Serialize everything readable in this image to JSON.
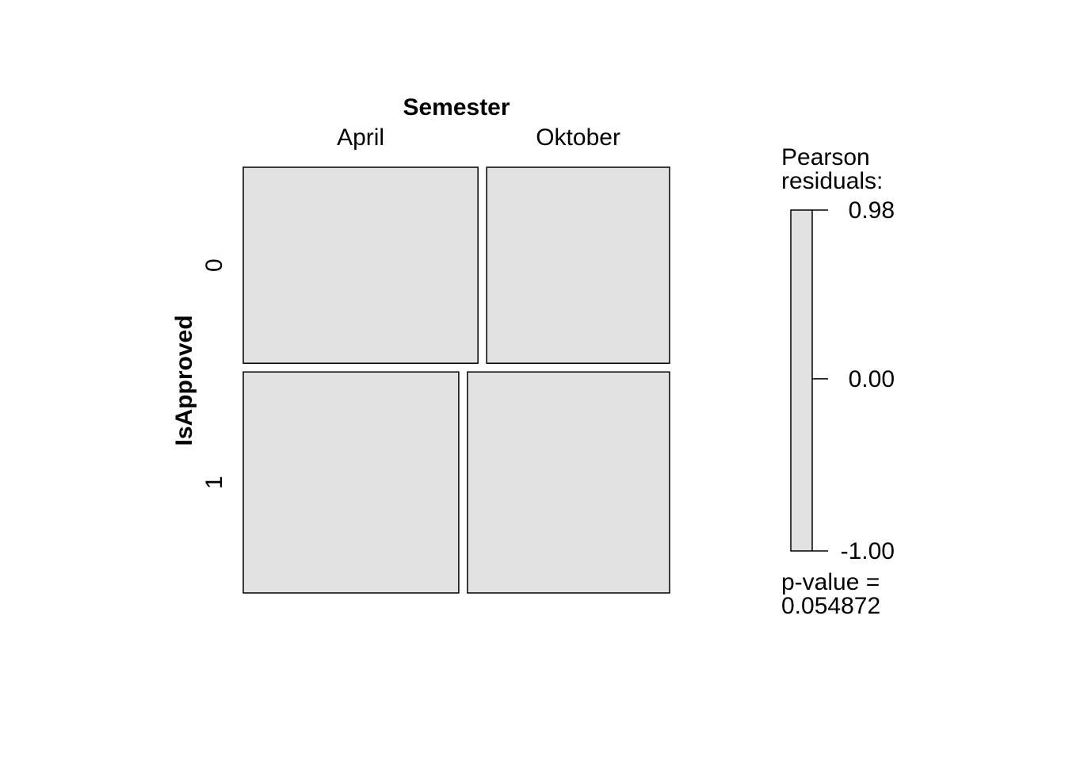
{
  "chart_data": {
    "type": "mosaic",
    "x_variable": "Semester",
    "y_variable": "IsApproved",
    "x_levels": [
      "April",
      "Oktober"
    ],
    "y_levels": [
      "0",
      "1"
    ],
    "cells": [
      {
        "y": "0",
        "x": "April",
        "proportion": 0.562
      },
      {
        "y": "0",
        "x": "Oktober",
        "proportion": 0.438
      },
      {
        "y": "1",
        "x": "April",
        "proportion": 0.516
      },
      {
        "y": "1",
        "x": "Oktober",
        "proportion": 0.484
      }
    ],
    "row_proportions": {
      "0": 0.47,
      "1": 0.53
    },
    "fill_color": "#e2e2e2",
    "legend": {
      "title_line1": "Pearson",
      "title_line2": "residuals:",
      "ticks": [
        "0.98",
        "0.00",
        "-1.00"
      ],
      "max": 0.98,
      "min": -1.0,
      "pvalue_line1": "p-value =",
      "pvalue_line2": "0.054872"
    }
  }
}
